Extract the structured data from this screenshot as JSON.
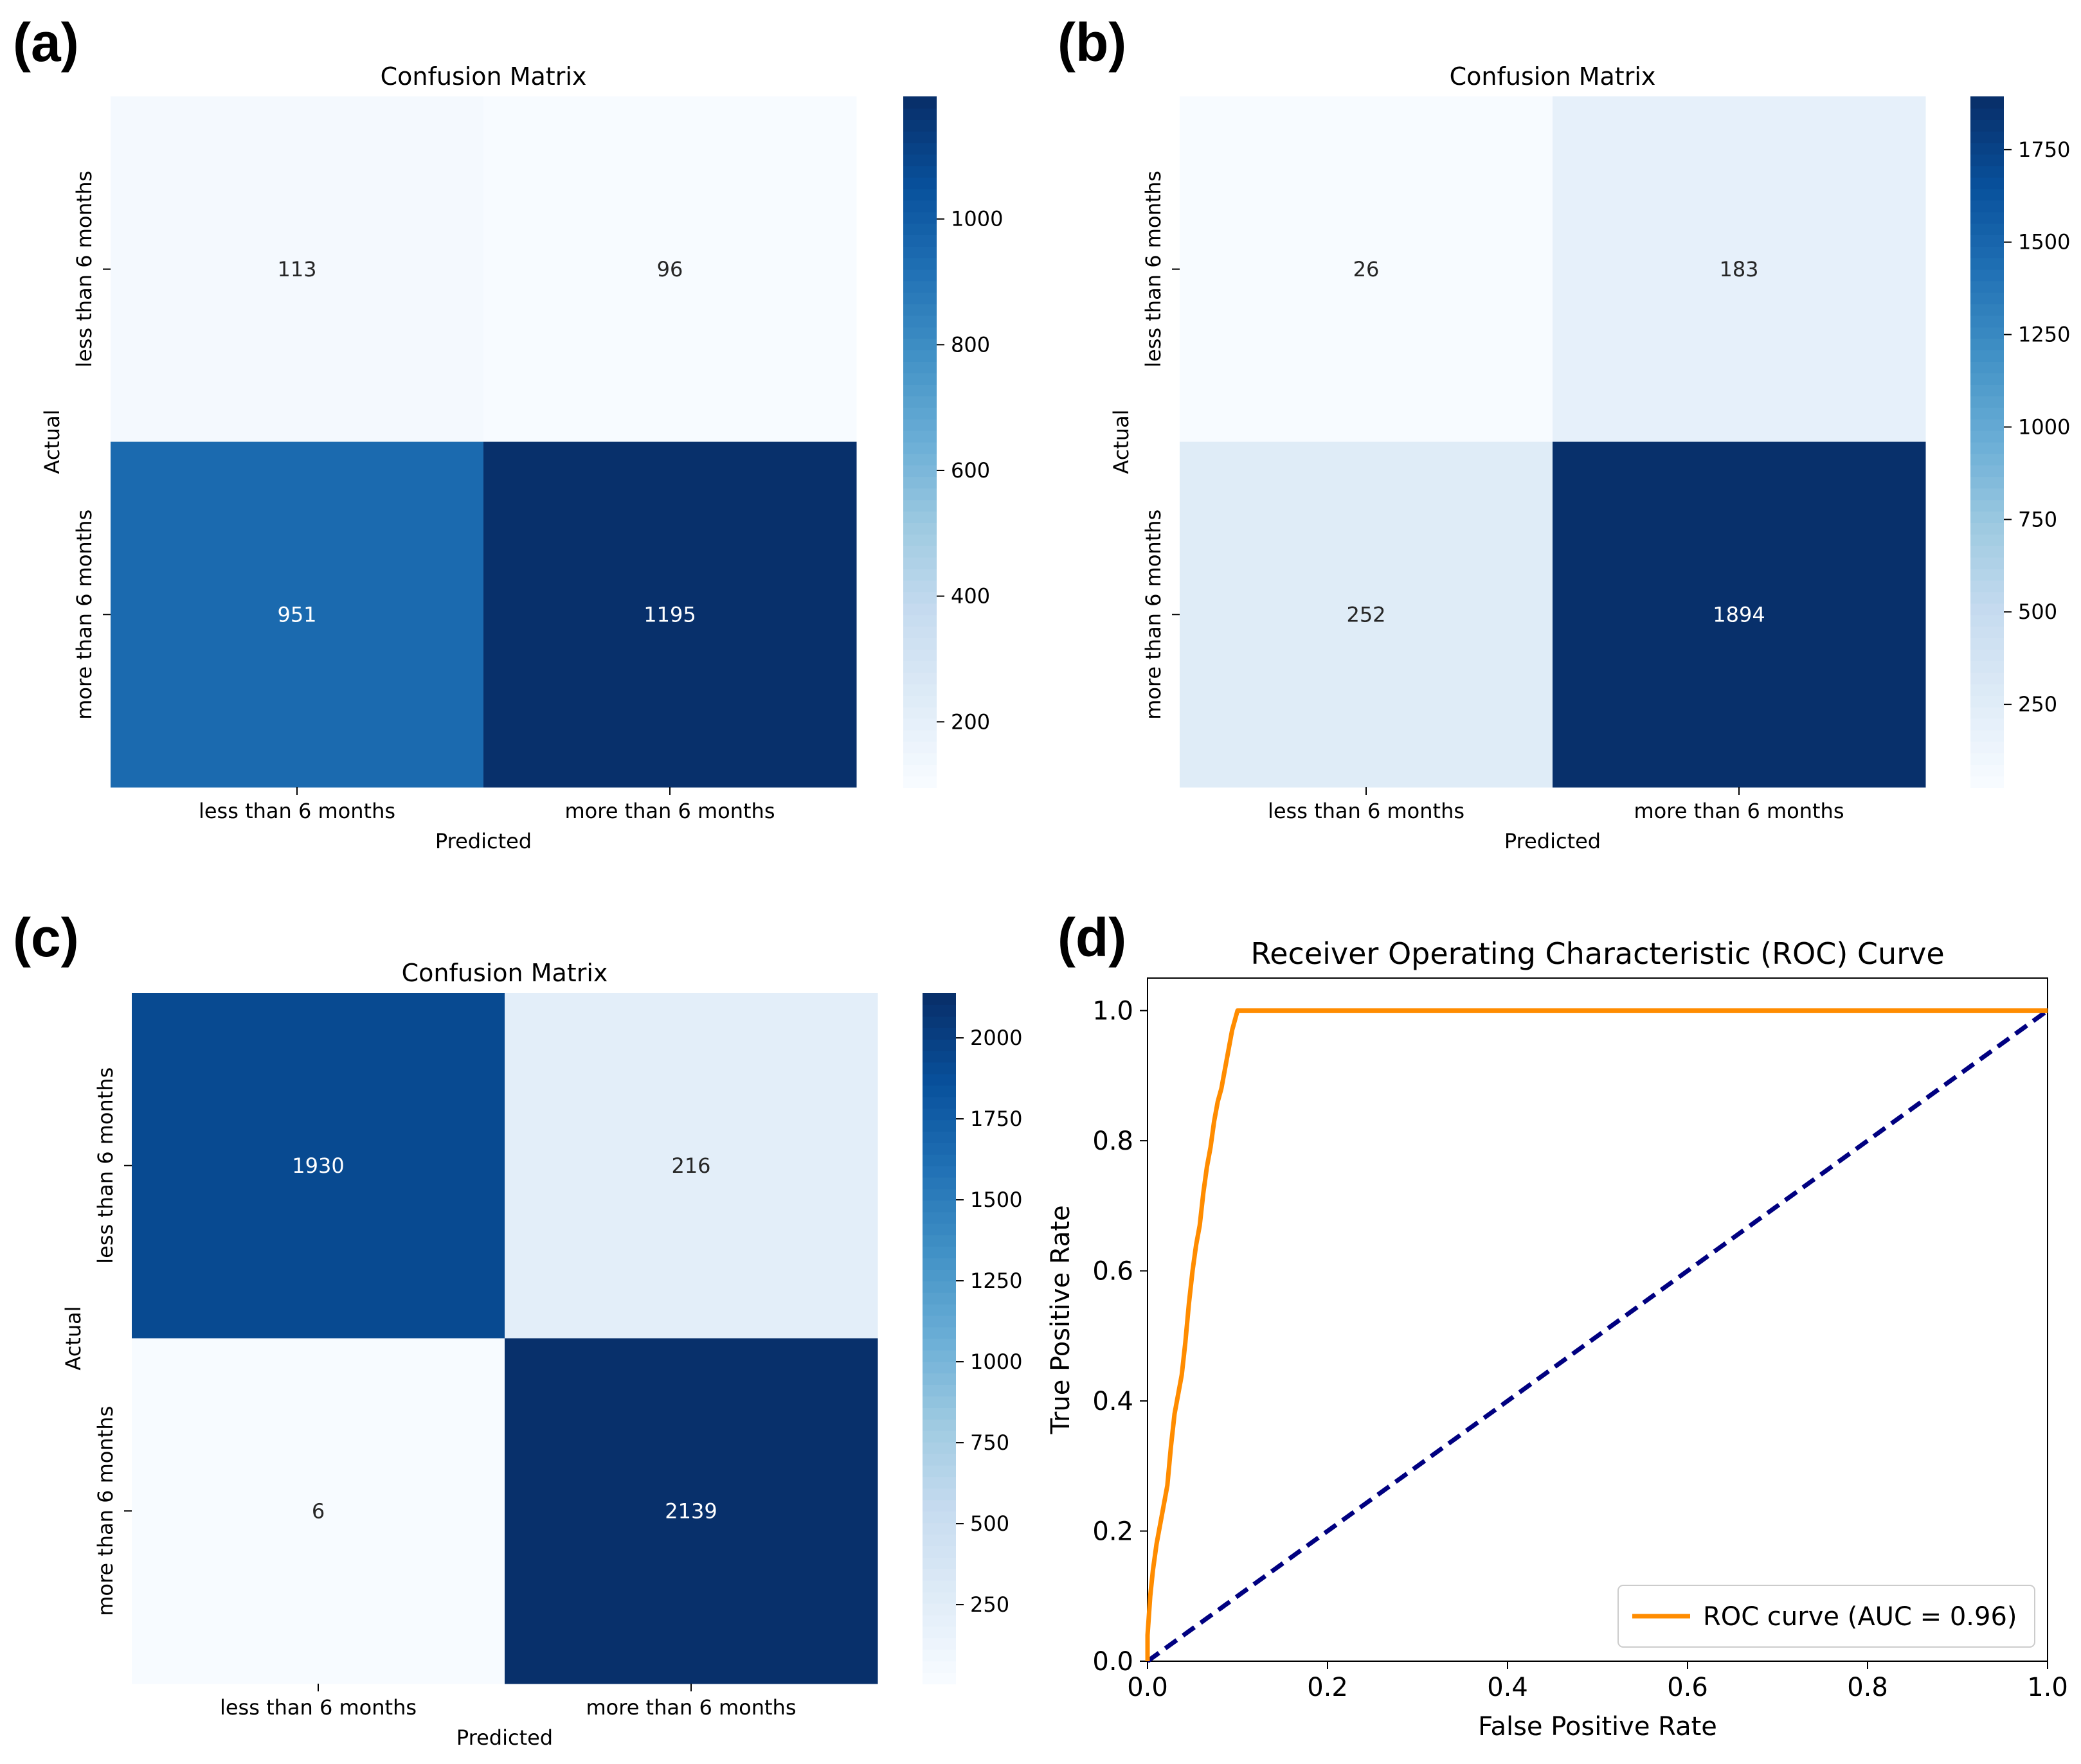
{
  "panels": {
    "a": {
      "letter": "(a)"
    },
    "b": {
      "letter": "(b)"
    },
    "c": {
      "letter": "(c)"
    },
    "d": {
      "letter": "(d)"
    }
  },
  "colors": {
    "roc_curve": "#ff8c00",
    "diagonal": "#000080",
    "cmap": [
      "#f7fbff",
      "#deebf7",
      "#c6dbef",
      "#9ecae1",
      "#6baed6",
      "#4292c6",
      "#2171b5",
      "#08519c",
      "#08306b"
    ]
  },
  "chart_data": [
    {
      "id": "a",
      "type": "heatmap",
      "title": "Confusion Matrix",
      "xlabel": "Predicted",
      "ylabel": "Actual",
      "x_categories": [
        "less than 6 months",
        "more than 6 months"
      ],
      "y_categories": [
        "less than 6 months",
        "more than 6 months"
      ],
      "values": [
        [
          113,
          96
        ],
        [
          951,
          1195
        ]
      ],
      "colorbar": {
        "min": 96,
        "max": 1195,
        "ticks": [
          200,
          400,
          600,
          800,
          1000
        ],
        "tick_labels": [
          "200",
          "400",
          "600",
          "800",
          "1000"
        ]
      }
    },
    {
      "id": "b",
      "type": "heatmap",
      "title": "Confusion Matrix",
      "xlabel": "Predicted",
      "ylabel": "Actual",
      "x_categories": [
        "less than 6 months",
        "more than 6 months"
      ],
      "y_categories": [
        "less than 6 months",
        "more than 6 months"
      ],
      "values": [
        [
          26,
          183
        ],
        [
          252,
          1894
        ]
      ],
      "colorbar": {
        "min": 26,
        "max": 1894,
        "ticks": [
          250,
          500,
          750,
          1000,
          1250,
          1500,
          1750
        ],
        "tick_labels": [
          "250",
          "500",
          "750",
          "1000",
          "1250",
          "1500",
          "1750"
        ]
      }
    },
    {
      "id": "c",
      "type": "heatmap",
      "title": "Confusion Matrix",
      "xlabel": "Predicted",
      "ylabel": "Actual",
      "x_categories": [
        "less than 6 months",
        "more than 6 months"
      ],
      "y_categories": [
        "less than 6 months",
        "more than 6 months"
      ],
      "values": [
        [
          1930,
          216
        ],
        [
          6,
          2139
        ]
      ],
      "colorbar": {
        "min": 6,
        "max": 2139,
        "ticks": [
          250,
          500,
          750,
          1000,
          1250,
          1500,
          1750,
          2000
        ],
        "tick_labels": [
          "250",
          "500",
          "750",
          "1000",
          "1250",
          "1500",
          "1750",
          "2000"
        ]
      }
    },
    {
      "id": "d",
      "type": "line",
      "title": "Receiver Operating Characteristic (ROC) Curve",
      "xlabel": "False Positive Rate",
      "ylabel": "True Positive Rate",
      "xlim": [
        0.0,
        1.0
      ],
      "ylim": [
        0.0,
        1.05
      ],
      "xticks": [
        0.0,
        0.2,
        0.4,
        0.6,
        0.8,
        1.0
      ],
      "xtick_labels": [
        "0.0",
        "0.2",
        "0.4",
        "0.6",
        "0.8",
        "1.0"
      ],
      "yticks": [
        0.0,
        0.2,
        0.4,
        0.6,
        0.8,
        1.0
      ],
      "ytick_labels": [
        "0.0",
        "0.2",
        "0.4",
        "0.6",
        "0.8",
        "1.0"
      ],
      "legend": {
        "label": "ROC curve (AUC = 0.96)",
        "position": "lower-right"
      },
      "series": [
        {
          "name": "ROC curve (AUC = 0.96)",
          "x": [
            0.0,
            0.0,
            0.003,
            0.006,
            0.01,
            0.014,
            0.018,
            0.022,
            0.026,
            0.03,
            0.034,
            0.038,
            0.042,
            0.046,
            0.05,
            0.054,
            0.058,
            0.062,
            0.066,
            0.07,
            0.074,
            0.078,
            0.082,
            0.086,
            0.09,
            0.094,
            0.098,
            0.1,
            0.15,
            0.3,
            0.5,
            0.7,
            0.9,
            1.0
          ],
          "y": [
            0.0,
            0.04,
            0.1,
            0.14,
            0.18,
            0.21,
            0.24,
            0.27,
            0.33,
            0.38,
            0.41,
            0.44,
            0.49,
            0.55,
            0.6,
            0.64,
            0.67,
            0.72,
            0.76,
            0.79,
            0.83,
            0.86,
            0.88,
            0.91,
            0.94,
            0.97,
            0.99,
            1.0,
            1.0,
            1.0,
            1.0,
            1.0,
            1.0,
            1.0
          ]
        },
        {
          "name": "diagonal",
          "x": [
            0.0,
            1.0
          ],
          "y": [
            0.0,
            1.0
          ],
          "style": "dashed"
        }
      ]
    }
  ]
}
